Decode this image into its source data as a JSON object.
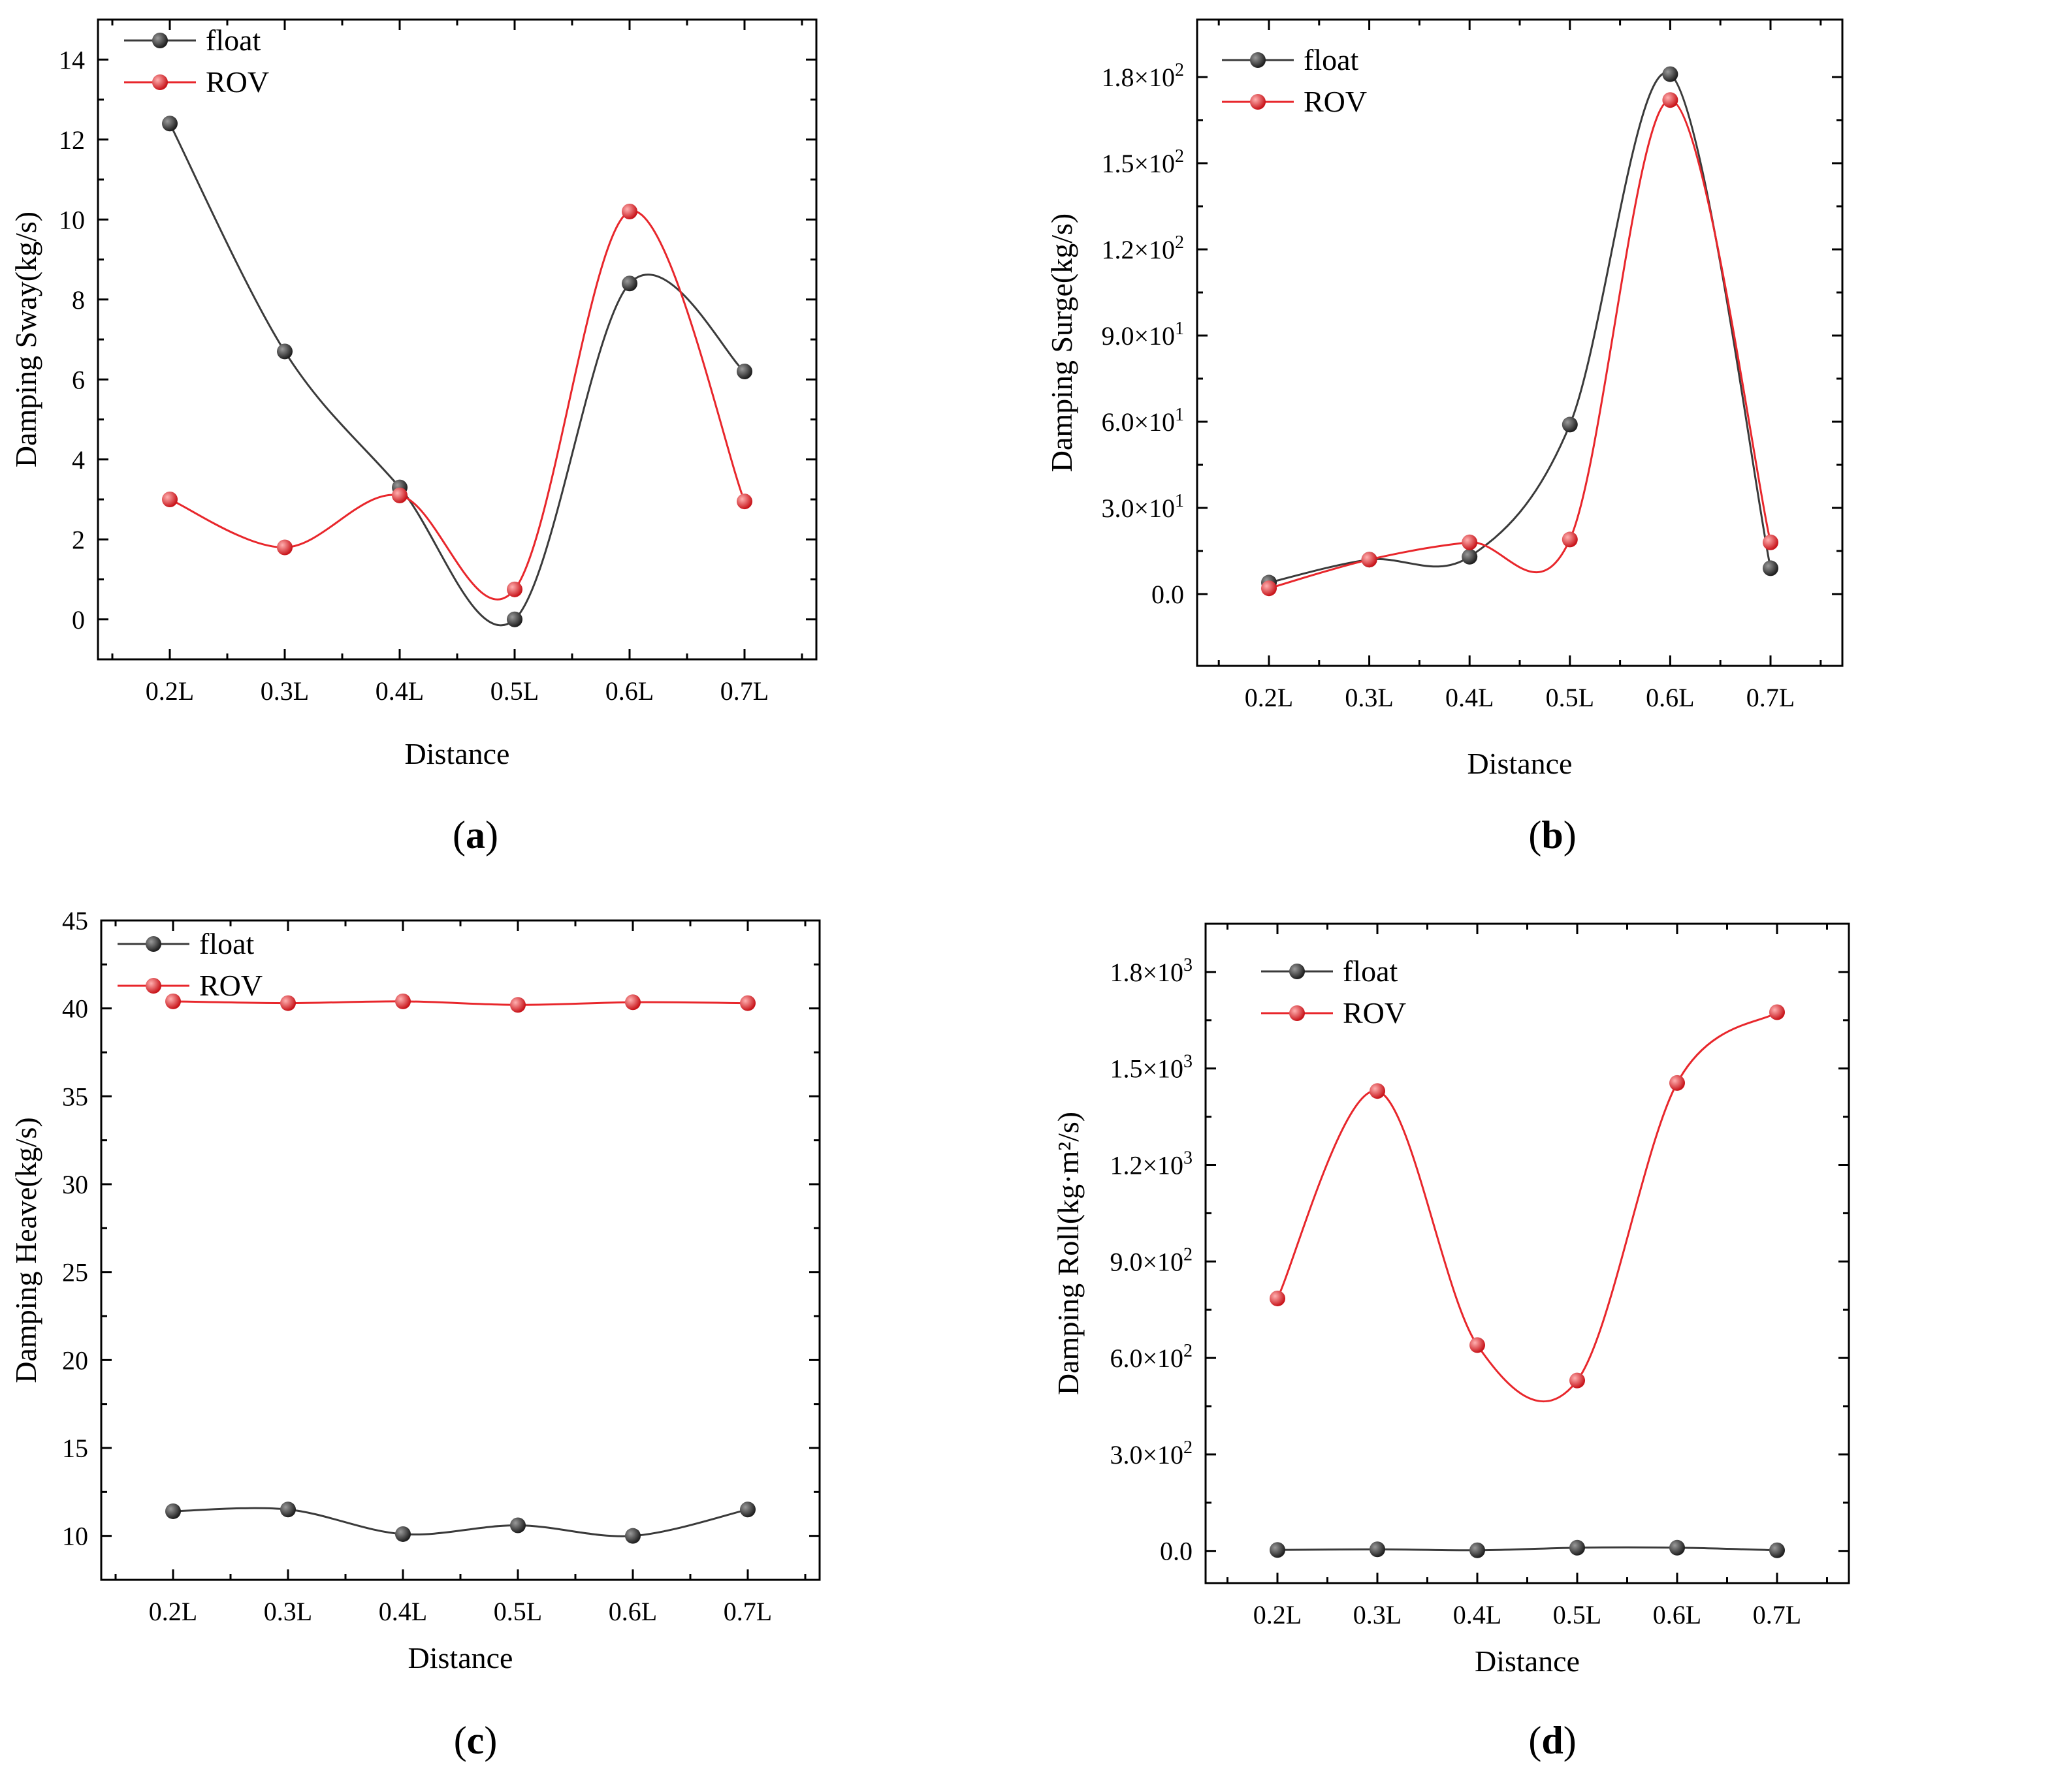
{
  "colors": {
    "float": "#3a3a3a",
    "rov": "#e8262b",
    "axis": "#000000"
  },
  "legend": {
    "float_label": "float",
    "rov_label": "ROV"
  },
  "xlabel": "Distance",
  "chart_data": [
    {
      "id": "a",
      "type": "line",
      "caption": "a",
      "title": "",
      "xlabel": "Distance",
      "ylabel": "Damping Sway(kg/s)",
      "categories": [
        "0.2L",
        "0.3L",
        "0.4L",
        "0.5L",
        "0.6L",
        "0.7L"
      ],
      "ylim": [
        -1,
        15
      ],
      "yticks": [
        0,
        2,
        4,
        6,
        8,
        10,
        12,
        14
      ],
      "ytick_labels": [
        "0",
        "2",
        "4",
        "6",
        "8",
        "10",
        "12",
        "14"
      ],
      "series": [
        {
          "name": "float",
          "values": [
            12.4,
            6.7,
            3.3,
            0.0,
            8.4,
            6.2
          ]
        },
        {
          "name": "ROV",
          "values": [
            3.0,
            1.8,
            3.1,
            0.75,
            10.2,
            2.95
          ]
        }
      ]
    },
    {
      "id": "b",
      "type": "line",
      "caption": "b",
      "title": "",
      "xlabel": "Distance",
      "ylabel": "Damping Surge(kg/s)",
      "categories": [
        "0.2L",
        "0.3L",
        "0.4L",
        "0.5L",
        "0.6L",
        "0.7L"
      ],
      "ylim": [
        -25,
        200
      ],
      "yticks": [
        0,
        30,
        60,
        90,
        120,
        150,
        180
      ],
      "ytick_labels": [
        {
          "base": "0.0",
          "exp": ""
        },
        {
          "base": "3.0×10",
          "exp": "1"
        },
        {
          "base": "6.0×10",
          "exp": "1"
        },
        {
          "base": "9.0×10",
          "exp": "1"
        },
        {
          "base": "1.2×10",
          "exp": "2"
        },
        {
          "base": "1.5×10",
          "exp": "2"
        },
        {
          "base": "1.8×10",
          "exp": "2"
        }
      ],
      "series": [
        {
          "name": "float",
          "values": [
            4.0,
            12.0,
            13.0,
            59.0,
            181.0,
            9.0
          ]
        },
        {
          "name": "ROV",
          "values": [
            2.0,
            12.0,
            18.0,
            19.0,
            172.0,
            18.0
          ]
        }
      ]
    },
    {
      "id": "c",
      "type": "line",
      "caption": "c",
      "title": "",
      "xlabel": "Distance",
      "ylabel": "Damping Heave(kg/s)",
      "categories": [
        "0.2L",
        "0.3L",
        "0.4L",
        "0.5L",
        "0.6L",
        "0.7L"
      ],
      "ylim": [
        7.5,
        45
      ],
      "yticks": [
        10,
        15,
        20,
        25,
        30,
        35,
        40,
        45
      ],
      "ytick_labels": [
        "10",
        "15",
        "20",
        "25",
        "30",
        "35",
        "40",
        "45"
      ],
      "series": [
        {
          "name": "float",
          "values": [
            11.4,
            11.5,
            10.1,
            10.6,
            10.0,
            11.5
          ]
        },
        {
          "name": "ROV",
          "values": [
            40.4,
            40.3,
            40.4,
            40.2,
            40.35,
            40.3
          ]
        }
      ]
    },
    {
      "id": "d",
      "type": "line",
      "caption": "d",
      "title": "",
      "xlabel": "Distance",
      "ylabel": "Damping Roll(kg·m²/s)",
      "categories": [
        "0.2L",
        "0.3L",
        "0.4L",
        "0.5L",
        "0.6L",
        "0.7L"
      ],
      "ylim": [
        -100,
        1950
      ],
      "yticks": [
        0,
        300,
        600,
        900,
        1200,
        1500,
        1800
      ],
      "ytick_labels": [
        {
          "base": "0.0",
          "exp": ""
        },
        {
          "base": "3.0×10",
          "exp": "2"
        },
        {
          "base": "6.0×10",
          "exp": "2"
        },
        {
          "base": "9.0×10",
          "exp": "2"
        },
        {
          "base": "1.2×10",
          "exp": "3"
        },
        {
          "base": "1.5×10",
          "exp": "3"
        },
        {
          "base": "1.8×10",
          "exp": "3"
        }
      ],
      "series": [
        {
          "name": "float",
          "values": [
            3,
            5,
            2,
            10,
            10,
            2
          ]
        },
        {
          "name": "ROV",
          "values": [
            785,
            1430,
            640,
            530,
            1455,
            1675
          ]
        }
      ]
    }
  ]
}
